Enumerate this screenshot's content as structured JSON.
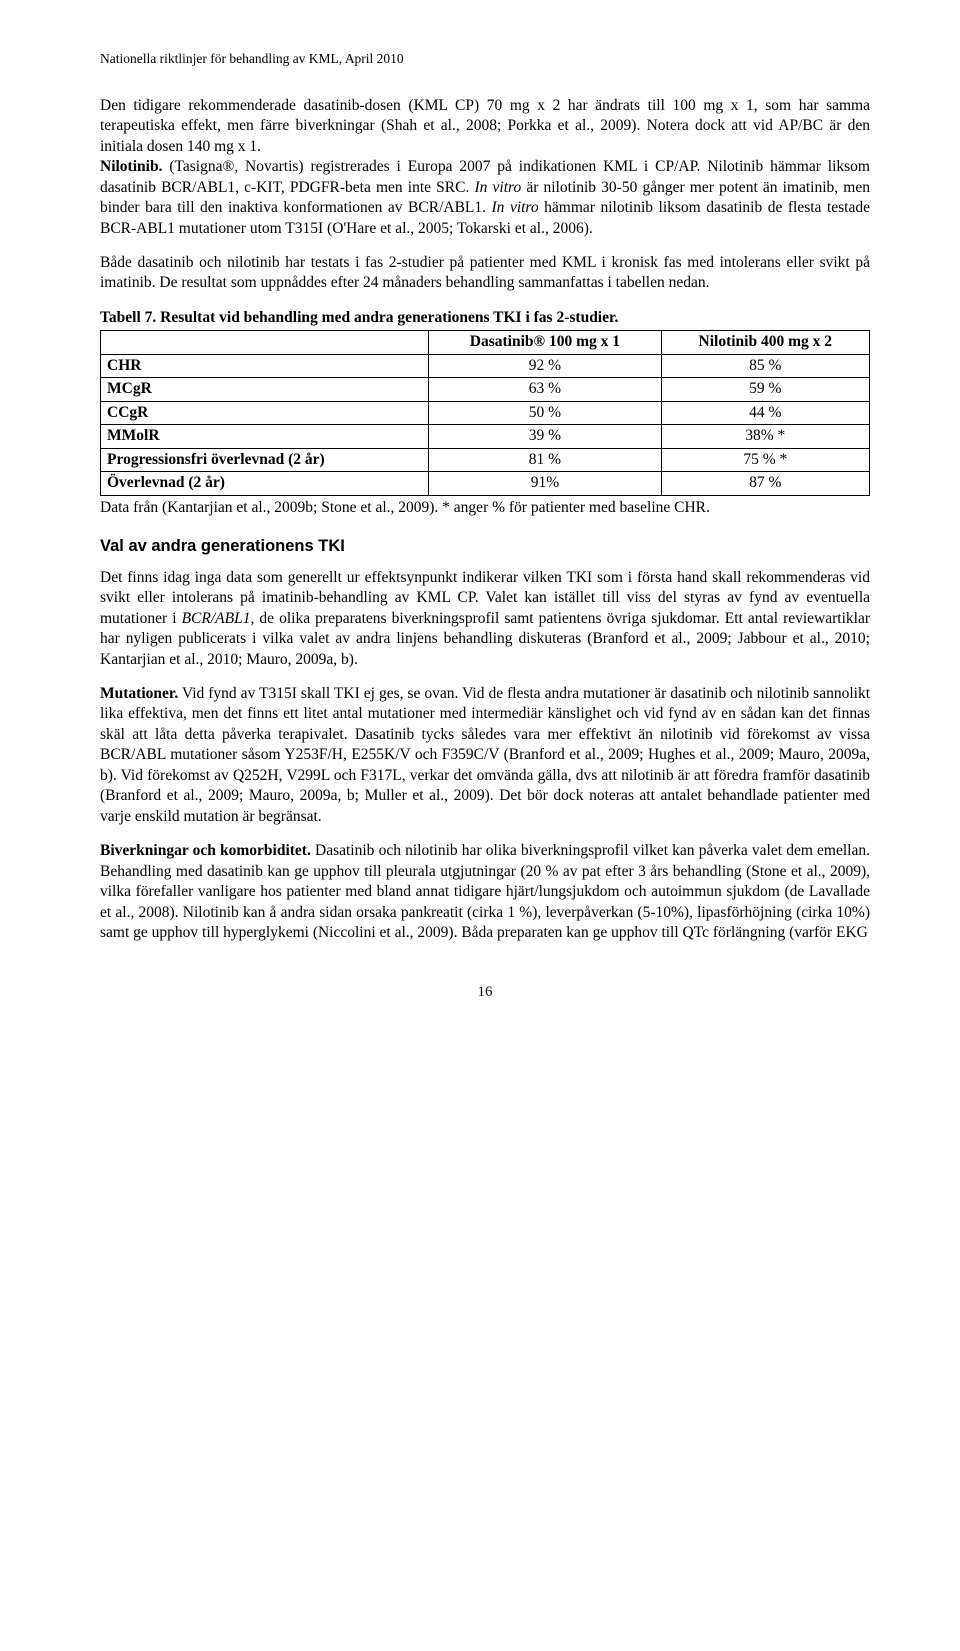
{
  "header": {
    "text": "Nationella riktlinjer för behandling av KML, April 2010"
  },
  "para1_pre": "Den tidigare rekommenderade dasatinib-dosen (KML CP) 70 mg x 2 har ändrats till 100 mg x 1, som har samma terapeutiska effekt, men färre biverkningar (Shah et al., 2008; Porkka et al., 2009). Notera dock att vid AP/BC är den initiala dosen 140 mg x 1.",
  "para1_nilotinib_lead": "Nilotinib.",
  "para1_nilotinib_body": " (Tasigna®, Novartis) registrerades i Europa 2007 på indikationen KML i CP/AP. Nilotinib hämmar liksom dasatinib BCR/ABL1, c-KIT, PDGFR-beta men inte SRC. ",
  "para1_invitro1": "In vitro",
  "para1_mid": " är nilotinib 30-50 gånger mer potent än imatinib, men binder bara till den inaktiva konformationen av BCR/ABL1. ",
  "para1_invitro2": "In vitro",
  "para1_tail": " hämmar nilotinib liksom dasatinib de flesta testade BCR-ABL1 mutationer utom T315I (O'Hare et al., 2005; Tokarski et al., 2006).",
  "para2": "Både dasatinib och nilotinib har testats i fas 2-studier på patienter med KML i kronisk fas med intolerans eller svikt på imatinib. De resultat som uppnåddes efter 24 månaders behandling sammanfattas i tabellen nedan.",
  "table": {
    "title": "Tabell 7. Resultat vid behandling med andra generationens TKI i fas 2-studier.",
    "col1": "Dasatinib® 100 mg x 1",
    "col2": "Nilotinib 400 mg x 2",
    "rows": [
      {
        "label": "CHR",
        "v1": "92 %",
        "v2": "85 %"
      },
      {
        "label": "MCgR",
        "v1": "63 %",
        "v2": "59 %"
      },
      {
        "label": "CCgR",
        "v1": "50 %",
        "v2": "44 %"
      },
      {
        "label": "MMolR",
        "v1": "39 %",
        "v2": "38% *"
      },
      {
        "label": "Progressionsfri överlevnad (2 år)",
        "v1": "81 %",
        "v2": "75 % *"
      },
      {
        "label": "Överlevnad (2 år)",
        "v1": "91%",
        "v2": "87 %"
      }
    ],
    "caption": "Data från (Kantarjian et al., 2009b; Stone et al., 2009). * anger % för patienter med baseline CHR."
  },
  "section_heading": "Val av andra generationens TKI",
  "para3_pre": "Det finns idag inga data som generellt ur effektsynpunkt indikerar vilken TKI som i första hand skall rekommenderas vid svikt eller intolerans på imatinib-behandling av KML CP. Valet kan istället till viss del styras av fynd av eventuella mutationer i ",
  "para3_italic": "BCR/ABL1",
  "para3_post": ", de olika preparatens biverkningsprofil samt patientens övriga sjukdomar. Ett antal reviewartiklar har nyligen publicerats i vilka valet av andra linjens behandling diskuteras (Branford et al., 2009; Jabbour et al., 2010; Kantarjian et al., 2010; Mauro, 2009a, b).",
  "para4_lead": "Mutationer.",
  "para4_body": " Vid fynd av T315I skall TKI ej ges, se ovan. Vid de flesta andra mutationer är dasatinib och nilotinib sannolikt lika effektiva, men det finns ett litet antal mutationer med intermediär känslighet och vid fynd av en sådan kan det finnas skäl att låta detta påverka terapivalet. Dasatinib tycks således vara mer effektivt än nilotinib vid förekomst av vissa BCR/ABL mutationer såsom Y253F/H, E255K/V och F359C/V (Branford et al., 2009; Hughes et al., 2009; Mauro, 2009a, b). Vid förekomst av Q252H, V299L och F317L, verkar det omvända gälla, dvs att nilotinib är att föredra framför dasatinib (Branford et al., 2009; Mauro, 2009a, b; Muller et al., 2009). Det bör dock noteras att antalet behandlade patienter med varje enskild mutation är begränsat.",
  "para5_lead": "Biverkningar och komorbiditet.",
  "para5_body": " Dasatinib och nilotinib har olika biverkningsprofil vilket kan påverka valet dem emellan. Behandling med dasatinib kan ge upphov till pleurala utgjutningar (20 % av pat efter 3 års behandling (Stone et al., 2009), vilka förefaller vanligare hos patienter med bland annat tidigare hjärt/lungsjukdom och autoimmun sjukdom (de Lavallade et al., 2008). Nilotinib kan å andra sidan orsaka pankreatit (cirka 1 %), leverpåverkan (5-10%), lipasförhöjning (cirka 10%) samt ge upphov till hyperglykemi (Niccolini et al., 2009). Båda preparaten kan ge upphov till QTc förlängning (varför EKG",
  "page_number": "16"
}
